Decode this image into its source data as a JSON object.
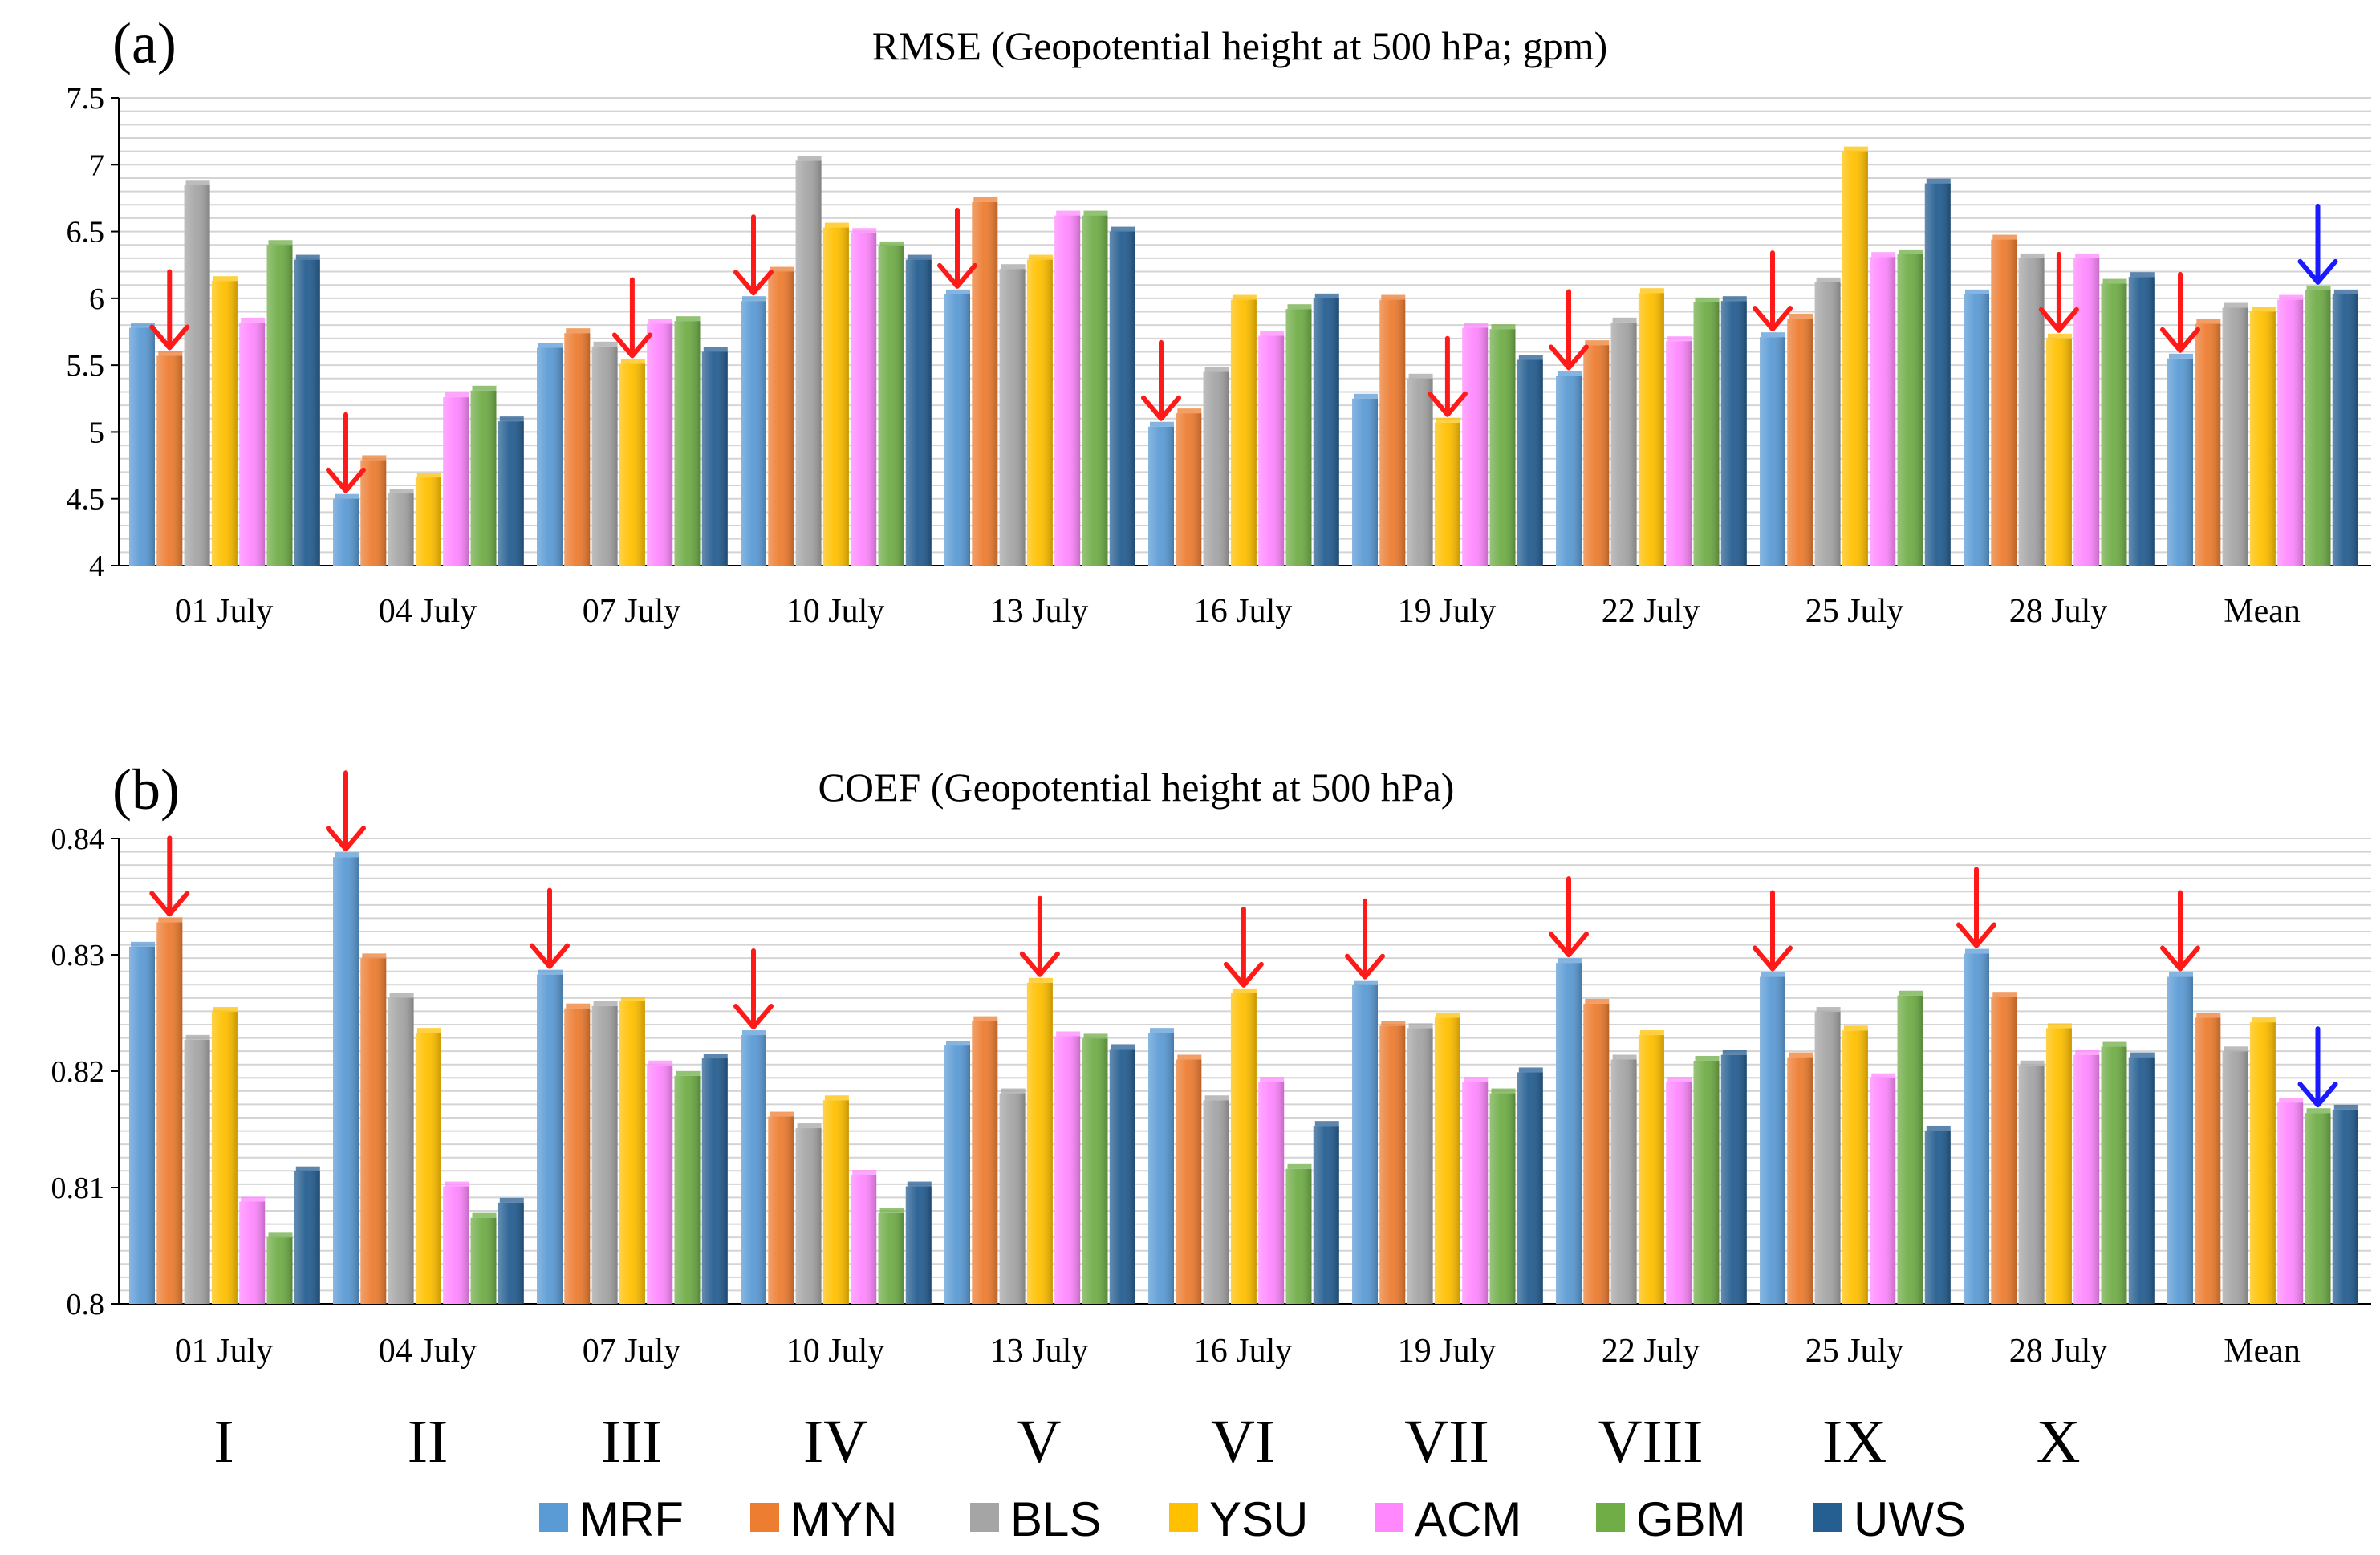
{
  "legend": [
    {
      "name": "MRF",
      "color": "#5b9bd5"
    },
    {
      "name": "MYN",
      "color": "#ed7d31"
    },
    {
      "name": "BLS",
      "color": "#a5a5a5"
    },
    {
      "name": "YSU",
      "color": "#ffc000"
    },
    {
      "name": "ACM",
      "color": "#ff88ff"
    },
    {
      "name": "GBM",
      "color": "#70ad47"
    },
    {
      "name": "UWS",
      "color": "#255e91"
    }
  ],
  "cases": [
    "I",
    "II",
    "III",
    "IV",
    "V",
    "VI",
    "VII",
    "VIII",
    "IX",
    "X"
  ],
  "arrow_colors": {
    "red": "#ff1a1a",
    "blue": "#1a1aff"
  },
  "chart_data": [
    {
      "type": "bar",
      "panel": "(a)",
      "title": "RMSE (Geopotential height at 500 hPa; gpm)",
      "categories": [
        "01 July",
        "04 July",
        "07 July",
        "10 July",
        "13 July",
        "16 July",
        "19 July",
        "22 July",
        "25 July",
        "28 July",
        "Mean"
      ],
      "ylim": [
        4,
        7.5
      ],
      "yticks": [
        "4",
        "4.5",
        "5",
        "5.5",
        "6",
        "6.5",
        "7",
        "7.5"
      ],
      "series": [
        {
          "name": "MRF",
          "values": [
            5.78,
            4.5,
            5.63,
            5.98,
            6.03,
            5.04,
            5.25,
            5.42,
            5.71,
            6.03,
            5.55
          ]
        },
        {
          "name": "MYN",
          "values": [
            5.57,
            4.79,
            5.74,
            6.2,
            6.72,
            5.14,
            5.99,
            5.65,
            5.85,
            6.44,
            5.81
          ]
        },
        {
          "name": "BLS",
          "values": [
            6.85,
            4.54,
            5.64,
            7.03,
            6.22,
            5.45,
            5.4,
            5.82,
            6.12,
            6.3,
            5.93
          ]
        },
        {
          "name": "YSU",
          "values": [
            6.13,
            4.66,
            5.51,
            6.53,
            6.29,
            5.99,
            5.07,
            6.04,
            7.1,
            5.7,
            5.9
          ]
        },
        {
          "name": "ACM",
          "values": [
            5.82,
            5.26,
            5.81,
            6.49,
            6.62,
            5.72,
            5.78,
            5.68,
            6.31,
            6.3,
            5.99
          ]
        },
        {
          "name": "GBM",
          "values": [
            6.4,
            5.31,
            5.83,
            6.39,
            6.62,
            5.92,
            5.77,
            5.97,
            6.33,
            6.11,
            6.06
          ]
        },
        {
          "name": "UWS",
          "values": [
            6.29,
            5.08,
            5.6,
            6.29,
            6.5,
            6.0,
            5.54,
            5.98,
            6.86,
            6.16,
            6.03
          ]
        }
      ],
      "arrows": [
        {
          "category": 0,
          "series": 1,
          "color": "red"
        },
        {
          "category": 1,
          "series": 0,
          "color": "red"
        },
        {
          "category": 2,
          "series": 3,
          "color": "red"
        },
        {
          "category": 3,
          "series": 0,
          "color": "red"
        },
        {
          "category": 4,
          "series": 0,
          "color": "red"
        },
        {
          "category": 5,
          "series": 0,
          "color": "red"
        },
        {
          "category": 6,
          "series": 3,
          "color": "red"
        },
        {
          "category": 7,
          "series": 0,
          "color": "red"
        },
        {
          "category": 8,
          "series": 0,
          "color": "red"
        },
        {
          "category": 9,
          "series": 3,
          "color": "red"
        },
        {
          "category": 10,
          "series": 0,
          "color": "red"
        },
        {
          "category": 10,
          "series": 5,
          "color": "blue"
        }
      ]
    },
    {
      "type": "bar",
      "panel": "(b)",
      "title": "COEF (Geopotential height at 500 hPa)",
      "categories": [
        "01 July",
        "04 July",
        "07 July",
        "10 July",
        "13 July",
        "16 July",
        "19 July",
        "22 July",
        "25 July",
        "28 July",
        "Mean"
      ],
      "ylim": [
        0.8,
        0.84
      ],
      "yticks": [
        "0.8",
        "0.81",
        "0.82",
        "0.83",
        "0.84"
      ],
      "series": [
        {
          "name": "MRF",
          "values": [
            0.8307,
            0.8384,
            0.8283,
            0.8231,
            0.8222,
            0.8233,
            0.8274,
            0.8293,
            0.8281,
            0.8301,
            0.8281
          ]
        },
        {
          "name": "MYN",
          "values": [
            0.8328,
            0.8297,
            0.8254,
            0.8161,
            0.8243,
            0.821,
            0.8239,
            0.8258,
            0.8212,
            0.8264,
            0.8246
          ]
        },
        {
          "name": "BLS",
          "values": [
            0.8227,
            0.8263,
            0.8256,
            0.8151,
            0.8181,
            0.8175,
            0.8237,
            0.821,
            0.8251,
            0.8205,
            0.8217
          ]
        },
        {
          "name": "YSU",
          "values": [
            0.8251,
            0.8233,
            0.826,
            0.8175,
            0.8276,
            0.8267,
            0.8246,
            0.8231,
            0.8235,
            0.8237,
            0.8242
          ]
        },
        {
          "name": "ACM",
          "values": [
            0.8088,
            0.8101,
            0.8205,
            0.8111,
            0.823,
            0.8191,
            0.8191,
            0.8191,
            0.8194,
            0.8214,
            0.8173
          ]
        },
        {
          "name": "GBM",
          "values": [
            0.8057,
            0.8074,
            0.8196,
            0.8078,
            0.8228,
            0.8116,
            0.8181,
            0.8209,
            0.8265,
            0.8221,
            0.8164
          ]
        },
        {
          "name": "UWS",
          "values": [
            0.8114,
            0.8087,
            0.8211,
            0.8101,
            0.8219,
            0.8153,
            0.8199,
            0.8214,
            0.8149,
            0.8212,
            0.8167
          ]
        }
      ],
      "arrows": [
        {
          "category": 0,
          "series": 1,
          "color": "red"
        },
        {
          "category": 1,
          "series": 0,
          "color": "red"
        },
        {
          "category": 2,
          "series": 0,
          "color": "red"
        },
        {
          "category": 3,
          "series": 0,
          "color": "red"
        },
        {
          "category": 4,
          "series": 3,
          "color": "red"
        },
        {
          "category": 5,
          "series": 3,
          "color": "red"
        },
        {
          "category": 6,
          "series": 0,
          "color": "red"
        },
        {
          "category": 7,
          "series": 0,
          "color": "red"
        },
        {
          "category": 8,
          "series": 0,
          "color": "red"
        },
        {
          "category": 9,
          "series": 0,
          "color": "red"
        },
        {
          "category": 10,
          "series": 0,
          "color": "red"
        },
        {
          "category": 10,
          "series": 5,
          "color": "blue"
        }
      ]
    }
  ]
}
